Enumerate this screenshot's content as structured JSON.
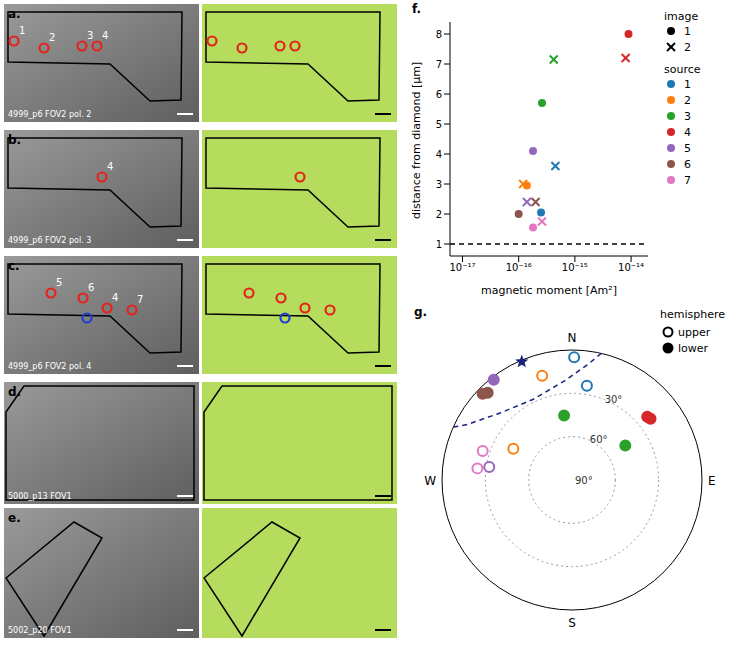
{
  "panels": [
    {
      "letter": "a.",
      "caption": "4999_p6 FOV2 pol. 2",
      "sources": [
        {
          "label": "1",
          "color": "#e3241c"
        },
        {
          "label": "2",
          "color": "#e3241c"
        },
        {
          "label": "3",
          "color": "#e3241c"
        },
        {
          "label": "4",
          "color": "#e3241c"
        }
      ]
    },
    {
      "letter": "b.",
      "caption": "4999_p6 FOV2 pol. 3",
      "sources": [
        {
          "label": "4",
          "color": "#e3241c"
        }
      ]
    },
    {
      "letter": "c.",
      "caption": "4999_p6 FOV2 pol. 4",
      "sources": [
        {
          "label": "5",
          "color": "#e3241c"
        },
        {
          "label": "6",
          "color": "#e3241c"
        },
        {
          "label": "4",
          "color": "#e3241c"
        },
        {
          "label": "7",
          "color": "#e3241c"
        },
        {
          "label": null,
          "color": "#1f3fd0"
        }
      ]
    },
    {
      "letter": "d.",
      "caption": "5000_p13 FOV1",
      "sources": []
    },
    {
      "letter": "e.",
      "caption": "5002_p20 FOV1",
      "sources": []
    }
  ],
  "chart_data": [
    {
      "panel": "f.",
      "type": "scatter",
      "xlabel": "magnetic moment [Am²]",
      "ylabel": "distance from diamond [µm]",
      "log": "x",
      "xlim": [
        6e-18,
        2e-14
      ],
      "xticks": [
        {
          "value": 1e-17,
          "label": "10⁻¹⁷"
        },
        {
          "value": 1e-16,
          "label": "10⁻¹⁶"
        },
        {
          "value": 1e-15,
          "label": "10⁻¹⁵"
        },
        {
          "value": 1e-14,
          "label": "10⁻¹⁴"
        }
      ],
      "ylim": [
        0.6,
        8.4
      ],
      "yticks": [
        1,
        2,
        3,
        4,
        5,
        6,
        7,
        8
      ],
      "reference_line": {
        "y": 1,
        "line_style": "dashed",
        "color": "#000000"
      },
      "legend": "right",
      "series_title": "image",
      "series": [
        {
          "name": "1",
          "marker": "circle",
          "points": [
            {
              "source": "1",
              "x": 2.5e-16,
              "y": 2.05
            },
            {
              "source": "2",
              "x": 1.4e-16,
              "y": 2.95
            },
            {
              "source": "3",
              "x": 2.6e-16,
              "y": 5.7
            },
            {
              "source": "4",
              "x": 9e-15,
              "y": 8.0
            },
            {
              "source": "5",
              "x": 1.8e-16,
              "y": 4.1
            },
            {
              "source": "6",
              "x": 1e-16,
              "y": 2.0
            },
            {
              "source": "7",
              "x": 1.8e-16,
              "y": 1.55
            }
          ]
        },
        {
          "name": "2",
          "marker": "x",
          "points": [
            {
              "source": "1",
              "x": 4.5e-16,
              "y": 3.6
            },
            {
              "source": "2",
              "x": 1.2e-16,
              "y": 3.0
            },
            {
              "source": "3",
              "x": 4.2e-16,
              "y": 7.15
            },
            {
              "source": "4",
              "x": 8e-15,
              "y": 7.2
            },
            {
              "source": "5",
              "x": 1.4e-16,
              "y": 2.4
            },
            {
              "source": "6",
              "x": 2e-16,
              "y": 2.4
            },
            {
              "source": "7",
              "x": 2.6e-16,
              "y": 1.75
            }
          ]
        }
      ],
      "sources": {
        "title": "source",
        "items": [
          {
            "name": "1",
            "color": "#1f77b4"
          },
          {
            "name": "2",
            "color": "#ff7f0e"
          },
          {
            "name": "3",
            "color": "#2ca02c"
          },
          {
            "name": "4",
            "color": "#d62728"
          },
          {
            "name": "5",
            "color": "#9467bd"
          },
          {
            "name": "6",
            "color": "#8c564b"
          },
          {
            "name": "7",
            "color": "#e377c2"
          }
        ]
      }
    },
    {
      "panel": "g.",
      "type": "polar_scatter",
      "directions": [
        "N",
        "E",
        "S",
        "W"
      ],
      "rings": [
        {
          "value": 30,
          "label": "30°"
        },
        {
          "value": 60,
          "label": "60°"
        },
        {
          "value": 90,
          "label": "90°"
        }
      ],
      "legend": "top-right",
      "legend_title": "hemisphere",
      "hemispheres": [
        {
          "name": "upper",
          "marker": "open"
        },
        {
          "name": "lower",
          "marker": "filled"
        }
      ],
      "points": [
        {
          "source": "1",
          "azimuth": 1,
          "inclination": 5,
          "hemisphere": "upper"
        },
        {
          "source": "1",
          "azimuth": 9,
          "inclination": 24,
          "hemisphere": "upper"
        },
        {
          "source": "2",
          "azimuth": 344,
          "inclination": 15,
          "hemisphere": "upper"
        },
        {
          "source": "3",
          "azimuth": 353,
          "inclination": 45,
          "hemisphere": "lower"
        },
        {
          "source": "4",
          "azimuth": 52,
          "inclination": 21,
          "hemisphere": "lower"
        },
        {
          "source": "4",
          "azimuth": 50,
          "inclination": 22,
          "hemisphere": "lower"
        },
        {
          "source": "3",
          "azimuth": 57,
          "inclination": 46,
          "hemisphere": "lower"
        },
        {
          "source": "5",
          "azimuth": 322,
          "inclination": 2,
          "hemisphere": "lower"
        },
        {
          "source": "6",
          "azimuth": 314,
          "inclination": 4,
          "hemisphere": "lower"
        },
        {
          "source": "6",
          "azimuth": 316,
          "inclination": 6,
          "hemisphere": "lower"
        },
        {
          "source": "7",
          "azimuth": 288,
          "inclination": 25,
          "hemisphere": "upper"
        },
        {
          "source": "2",
          "azimuth": 298,
          "inclination": 44,
          "hemisphere": "upper"
        },
        {
          "source": "5",
          "azimuth": 279,
          "inclination": 32,
          "hemisphere": "upper"
        },
        {
          "source": "7",
          "azimuth": 277,
          "inclination": 24,
          "hemisphere": "upper"
        }
      ],
      "mean": {
        "azimuth": 337,
        "inclination": 1,
        "marker": "star",
        "color": "#1a237e"
      },
      "confidence_region": {
        "color": "#1a237e",
        "line_style": "dashed",
        "points": [
          [
            13,
            0
          ],
          [
            8,
            9
          ],
          [
            356,
            21
          ],
          [
            334,
            28
          ],
          [
            313,
            22
          ],
          [
            298,
            8
          ],
          [
            294,
            0
          ]
        ]
      }
    }
  ]
}
